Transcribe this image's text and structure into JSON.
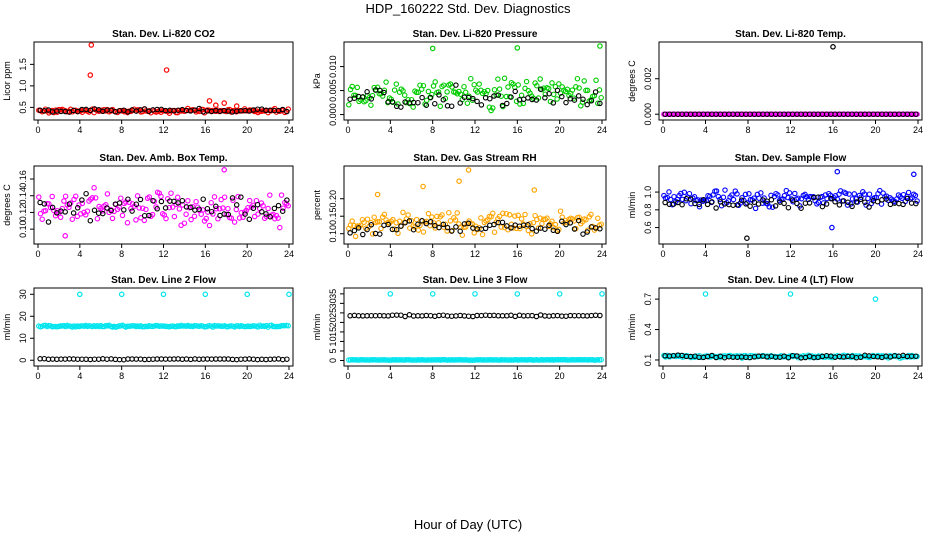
{
  "figure": {
    "title": "HDP_160222  Std. Dev. Diagnostics",
    "xlabel": "Hour of Day (UTC)"
  },
  "chart_data": [
    {
      "type": "scatter",
      "title": "Stan. Dev. Li-820 CO2",
      "ylabel": "Licor ppm",
      "xlim": [
        0,
        24
      ],
      "xticks": [
        "0",
        "4",
        "8",
        "12",
        "16",
        "20",
        "24"
      ],
      "ylim": [
        0.3,
        1.95
      ],
      "yticks": [
        "0.5",
        "1.0",
        "1.5"
      ],
      "colors": [
        "#ff0000",
        "#000000"
      ],
      "series": [
        {
          "color": "#ff0000",
          "base": 0.42,
          "spread": 0.035,
          "outliers": [
            [
              5.1,
              1.95
            ],
            [
              5.0,
              1.25
            ],
            [
              12.3,
              1.37
            ],
            [
              16.4,
              0.65
            ],
            [
              17.0,
              0.55
            ],
            [
              17.8,
              0.6
            ],
            [
              19.0,
              0.53
            ]
          ]
        },
        {
          "color": "#000000",
          "base": 0.43,
          "spread": 0.03,
          "outliers": []
        }
      ]
    },
    {
      "type": "scatter",
      "title": "Stan. Dev. Li-820 Pressure",
      "ylabel": "kPa",
      "xlim": [
        0,
        24
      ],
      "xticks": [
        "0",
        "4",
        "8",
        "12",
        "16",
        "20",
        "24"
      ],
      "ylim": [
        -0.0003,
        0.0145
      ],
      "yticks": [
        "0.000",
        "0.005",
        "0.010"
      ],
      "colors": [
        "#00cc00",
        "#000000"
      ],
      "series": [
        {
          "color": "#00cc00",
          "base": 0.0045,
          "spread": 0.0022,
          "outliers": [
            [
              8.0,
              0.0138
            ],
            [
              16.0,
              0.0139
            ],
            [
              23.8,
              0.0143
            ]
          ]
        },
        {
          "color": "#000000",
          "base": 0.0035,
          "spread": 0.0015,
          "outliers": []
        }
      ]
    },
    {
      "type": "scatter",
      "title": "Stan. Dev. Li-820 Temp.",
      "ylabel": "degrees C",
      "xlim": [
        0,
        24
      ],
      "xticks": [
        "0",
        "4",
        "8",
        "12",
        "16",
        "20",
        "24"
      ],
      "ylim": [
        -0.0001,
        0.0039
      ],
      "yticks": [
        "0.000",
        "0.002"
      ],
      "colors": [
        "#ff00ff",
        "#000000"
      ],
      "series": [
        {
          "color": "#ff00ff",
          "base": 0.0,
          "spread": 0.0,
          "outliers": []
        },
        {
          "color": "#000000",
          "base": 0.0,
          "spread": 0.0,
          "outliers": [
            [
              16.0,
              0.0038
            ]
          ]
        }
      ]
    },
    {
      "type": "scatter",
      "title": "Stan. Dev. Amb. Box Temp.",
      "ylabel": "degrees C",
      "xlim": [
        0,
        24
      ],
      "xticks": [
        "0",
        "4",
        "8",
        "12",
        "16",
        "20",
        "24"
      ],
      "ylim": [
        0.087,
        0.172
      ],
      "yticks": [
        "0.10",
        "0.12",
        "0.14",
        "0.16"
      ],
      "colors": [
        "#ff00ff",
        "#000000"
      ],
      "series": [
        {
          "color": "#ff00ff",
          "base": 0.125,
          "spread": 0.014,
          "outliers": [
            [
              17.8,
              0.171
            ],
            [
              2.6,
              0.092
            ]
          ]
        },
        {
          "color": "#000000",
          "base": 0.125,
          "spread": 0.012,
          "outliers": []
        }
      ]
    },
    {
      "type": "scatter",
      "title": "Stan. Dev. Gas Stream RH",
      "ylabel": "percent",
      "xlim": [
        0,
        24
      ],
      "xticks": [
        "0",
        "4",
        "8",
        "12",
        "16",
        "20",
        "24"
      ],
      "ylim": [
        0.082,
        0.285
      ],
      "yticks": [
        "0.10",
        "0.15",
        "0.20"
      ],
      "colors": [
        "#ffa500",
        "#000000"
      ],
      "series": [
        {
          "color": "#ffa500",
          "base": 0.13,
          "spread": 0.025,
          "outliers": [
            [
              11.4,
              0.282
            ],
            [
              2.8,
              0.212
            ],
            [
              10.5,
              0.25
            ],
            [
              17.6,
              0.225
            ],
            [
              7.1,
              0.235
            ]
          ]
        },
        {
          "color": "#000000",
          "base": 0.12,
          "spread": 0.018,
          "outliers": []
        }
      ]
    },
    {
      "type": "scatter",
      "title": "Stan. Dev. Sample Flow",
      "ylabel": "ml/min",
      "xlim": [
        0,
        24
      ],
      "xticks": [
        "0",
        "4",
        "8",
        "12",
        "16",
        "20",
        "24"
      ],
      "ylim": [
        0.46,
        1.26
      ],
      "yticks": [
        "0.6",
        "0.8",
        "1.0"
      ],
      "colors": [
        "#0000ff",
        "#000000"
      ],
      "series": [
        {
          "color": "#0000ff",
          "base": 0.93,
          "spread": 0.07,
          "outliers": [
            [
              16.4,
              1.23
            ],
            [
              15.9,
              0.6
            ],
            [
              23.6,
              1.2
            ]
          ]
        },
        {
          "color": "#000000",
          "base": 0.88,
          "spread": 0.05,
          "outliers": [
            [
              7.9,
              0.48
            ]
          ]
        }
      ]
    },
    {
      "type": "scatter",
      "title": "Stan. Dev. Line 2 Flow",
      "ylabel": "ml/min",
      "xlim": [
        0,
        24
      ],
      "xticks": [
        "0",
        "4",
        "8",
        "12",
        "16",
        "20",
        "24"
      ],
      "ylim": [
        -0.8,
        31.5
      ],
      "yticks": [
        "0",
        "10",
        "20",
        "30"
      ],
      "colors": [
        "#00e5ee",
        "#000000"
      ],
      "series": [
        {
          "color": "#00e5ee",
          "base": 15.5,
          "spread": 0.3,
          "outliers": [
            [
              4.0,
              30.0
            ],
            [
              8.0,
              30.0
            ],
            [
              12.0,
              30.0
            ],
            [
              16.0,
              30.0
            ],
            [
              20.0,
              30.0
            ],
            [
              24.0,
              30.0
            ]
          ]
        },
        {
          "color": "#000000",
          "base": 0.5,
          "spread": 0.15,
          "outliers": []
        }
      ]
    },
    {
      "type": "scatter",
      "title": "Stan. Dev. Line 3 Flow",
      "ylabel": "ml/min",
      "xlim": [
        0,
        24
      ],
      "xticks": [
        "0",
        "4",
        "8",
        "12",
        "16",
        "20",
        "24"
      ],
      "ylim": [
        -0.8,
        36.5
      ],
      "yticks": [
        "0",
        "5",
        "10",
        "15",
        "20",
        "25",
        "30",
        "35"
      ],
      "colors": [
        "#00e5ee",
        "#000000"
      ],
      "series": [
        {
          "color": "#000000",
          "base": 23.5,
          "spread": 0.3,
          "outliers": []
        },
        {
          "color": "#00e5ee",
          "base": 0.3,
          "spread": 0.1,
          "outliers": [
            [
              4.0,
              35.0
            ],
            [
              8.0,
              35.0
            ],
            [
              12.0,
              35.0
            ],
            [
              16.0,
              35.0
            ],
            [
              20.0,
              35.0
            ],
            [
              24.0,
              35.0
            ]
          ]
        }
      ]
    },
    {
      "type": "scatter",
      "title": "Stan. Dev. Line 4 (LT) Flow",
      "ylabel": "ml/min",
      "xlim": [
        0,
        24
      ],
      "xticks": [
        "0",
        "4",
        "8",
        "12",
        "16",
        "20",
        "24"
      ],
      "ylim": [
        0.08,
        0.78
      ],
      "yticks": [
        "0.1",
        "0.4",
        "0.7"
      ],
      "colors": [
        "#00e5ee",
        "#000000"
      ],
      "series": [
        {
          "color": "#00e5ee",
          "base": 0.135,
          "spread": 0.01,
          "outliers": [
            [
              4.0,
              0.75
            ],
            [
              12.0,
              0.75
            ],
            [
              20.0,
              0.7
            ]
          ]
        },
        {
          "color": "#000000",
          "base": 0.135,
          "spread": 0.01,
          "outliers": []
        }
      ]
    }
  ]
}
